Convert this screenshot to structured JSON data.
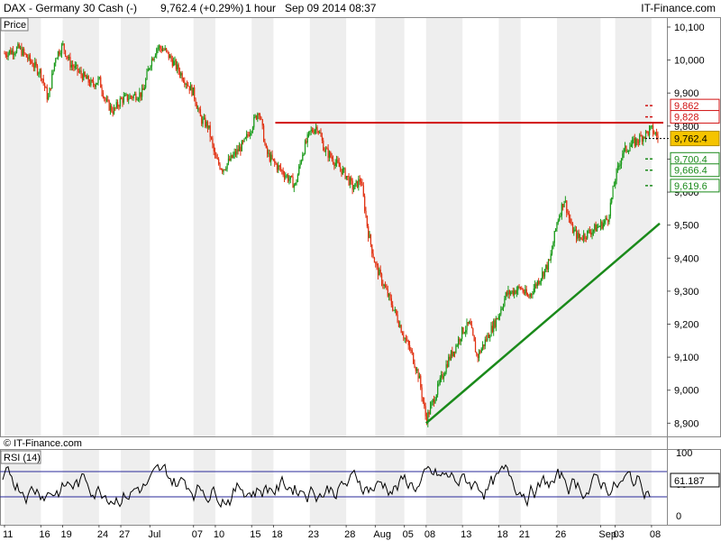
{
  "header": {
    "title": "DAX - Germany 30 Cash (-)",
    "quote": "9,762.4 (+0.29%)",
    "interval": "1 hour",
    "datetime": "Sep 09 2014 08:37",
    "brand": "IT-Finance.com"
  },
  "panels": {
    "price_label": "Price",
    "rsi_label": "RSI (14)",
    "copyright": "© IT-Finance.com",
    "rsi_value_badge": "61.187"
  },
  "colors": {
    "up": "#1a9a1a",
    "down": "#e03010",
    "resistance": "#d01010",
    "support": "#1a8a1a",
    "rsi_line": "#000000",
    "rsi_band": "#2a2a9a",
    "last_price_badge": "#f5c400",
    "grid_stripe": "#eeeeee"
  },
  "chart_data": [
    {
      "type": "candlestick",
      "title": "DAX - Germany 30 Cash (-)",
      "ylabel": "Price",
      "ylim": [
        8860,
        10130
      ],
      "yticks": [
        8900,
        9000,
        9100,
        9200,
        9300,
        9400,
        9500,
        9600,
        9700,
        9800,
        9900,
        10000,
        10100
      ],
      "ytick_labels": [
        "8,900",
        "9,000",
        "9,100",
        "9,200",
        "9,300",
        "9,400",
        "9,500",
        "9,600",
        "9,700",
        "9,800",
        "9,900",
        "10,000",
        "10,100"
      ],
      "x_tick_labels": [
        "11",
        "16",
        "19",
        "24",
        "27",
        "Jul",
        "07",
        "10",
        "15",
        "18",
        "23",
        "28",
        "Aug",
        "05",
        "08",
        "13",
        "18",
        "21",
        "26",
        "Sep",
        "03",
        "08"
      ],
      "last_price": 9762.4,
      "last_price_label": "9,762.4",
      "price_path": [
        {
          "x": "Jun 11",
          "y": 10020
        },
        {
          "x": "Jun 13",
          "y": 10035
        },
        {
          "x": "Jun 16",
          "y": 9960
        },
        {
          "x": "Jun 17",
          "y": 9880
        },
        {
          "x": "Jun 18",
          "y": 10010
        },
        {
          "x": "Jun 19",
          "y": 10045
        },
        {
          "x": "Jun 20",
          "y": 9990
        },
        {
          "x": "Jun 23",
          "y": 9925
        },
        {
          "x": "Jun 24",
          "y": 9940
        },
        {
          "x": "Jun 25",
          "y": 9870
        },
        {
          "x": "Jun 26",
          "y": 9845
        },
        {
          "x": "Jun 27",
          "y": 9880
        },
        {
          "x": "Jun 30",
          "y": 9900
        },
        {
          "x": "Jul 01",
          "y": 9990
        },
        {
          "x": "Jul 02",
          "y": 10040
        },
        {
          "x": "Jul 03",
          "y": 10030
        },
        {
          "x": "Jul 04",
          "y": 10000
        },
        {
          "x": "Jul 07",
          "y": 9900
        },
        {
          "x": "Jul 08",
          "y": 9820
        },
        {
          "x": "Jul 09",
          "y": 9800
        },
        {
          "x": "Jul 10",
          "y": 9700
        },
        {
          "x": "Jul 11",
          "y": 9670
        },
        {
          "x": "Jul 14",
          "y": 9750
        },
        {
          "x": "Jul 15",
          "y": 9800
        },
        {
          "x": "Jul 16",
          "y": 9850
        },
        {
          "x": "Jul 17",
          "y": 9720
        },
        {
          "x": "Jul 18",
          "y": 9690
        },
        {
          "x": "Jul 21",
          "y": 9620
        },
        {
          "x": "Jul 22",
          "y": 9720
        },
        {
          "x": "Jul 23",
          "y": 9780
        },
        {
          "x": "Jul 24",
          "y": 9800
        },
        {
          "x": "Jul 25",
          "y": 9730
        },
        {
          "x": "Jul 28",
          "y": 9650
        },
        {
          "x": "Jul 29",
          "y": 9610
        },
        {
          "x": "Jul 30",
          "y": 9640
        },
        {
          "x": "Jul 31",
          "y": 9480
        },
        {
          "x": "Aug 01",
          "y": 9380
        },
        {
          "x": "Aug 04",
          "y": 9220
        },
        {
          "x": "Aug 05",
          "y": 9160
        },
        {
          "x": "Aug 06",
          "y": 9110
        },
        {
          "x": "Aug 07",
          "y": 9040
        },
        {
          "x": "Aug 08",
          "y": 8910
        },
        {
          "x": "Aug 11",
          "y": 9090
        },
        {
          "x": "Aug 12",
          "y": 9130
        },
        {
          "x": "Aug 13",
          "y": 9180
        },
        {
          "x": "Aug 14",
          "y": 9200
        },
        {
          "x": "Aug 15",
          "y": 9100
        },
        {
          "x": "Aug 18",
          "y": 9230
        },
        {
          "x": "Aug 19",
          "y": 9290
        },
        {
          "x": "Aug 20",
          "y": 9300
        },
        {
          "x": "Aug 21",
          "y": 9310
        },
        {
          "x": "Aug 22",
          "y": 9280
        },
        {
          "x": "Aug 25",
          "y": 9390
        },
        {
          "x": "Aug 26",
          "y": 9510
        },
        {
          "x": "Aug 27",
          "y": 9580
        },
        {
          "x": "Aug 28",
          "y": 9490
        },
        {
          "x": "Aug 29",
          "y": 9460
        },
        {
          "x": "Sep 01",
          "y": 9500
        },
        {
          "x": "Sep 02",
          "y": 9520
        },
        {
          "x": "Sep 03",
          "y": 9640
        },
        {
          "x": "Sep 04",
          "y": 9720
        },
        {
          "x": "Sep 05",
          "y": 9740
        },
        {
          "x": "Sep 08",
          "y": 9790
        },
        {
          "x": "Sep 09",
          "y": 9762.4
        }
      ],
      "levels": [
        {
          "label": "9,862",
          "value": 9862,
          "color": "#d01010"
        },
        {
          "label": "9,828",
          "value": 9828,
          "color": "#d01010"
        },
        {
          "label": "9,700.4",
          "value": 9700.4,
          "color": "#1a8a1a"
        },
        {
          "label": "9,666.4",
          "value": 9666.4,
          "color": "#1a8a1a"
        },
        {
          "label": "9,619.6",
          "value": 9619.6,
          "color": "#1a8a1a"
        }
      ],
      "resistance_line": {
        "x_start": "Jul 18",
        "x_end": "Sep 09",
        "value": 9810
      },
      "support_trendline": {
        "start": {
          "x": "Aug 08",
          "y": 8900
        },
        "end": {
          "x": "Sep 09",
          "y": 9505
        }
      }
    },
    {
      "type": "line",
      "title": "RSI (14)",
      "ylim": [
        0,
        100
      ],
      "yticks": [
        0,
        50,
        100
      ],
      "ytick_labels": [
        "0",
        "50",
        "100"
      ],
      "bands": [
        30,
        70
      ],
      "current_value": 61.187
    }
  ]
}
